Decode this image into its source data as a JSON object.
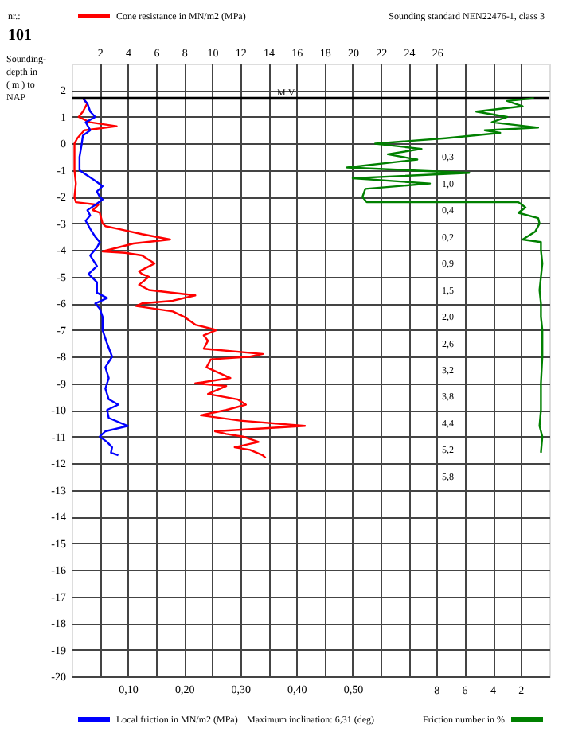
{
  "chart_data": [
    {
      "type": "line",
      "x2label": "Cone resistance in MN/m2 (MPa)",
      "xlabel": "Local friction in MN/m2 (MPa)",
      "ylabel": "Sounding-depth in ( m ) to NAP",
      "annotations": [
        "nr.:",
        "101",
        "Sounding standard NEN22476-1, class 3",
        "Maximum inclination: 6,31 (deg)",
        "0,3",
        "1,0",
        "0,4",
        "0,2",
        "0,9",
        "1,5",
        "2,0",
        "2,6",
        "3,2",
        "3,8",
        "4,4",
        "5,2",
        "5,8"
      ],
      "xlim": [
        0,
        0.85
      ],
      "xticks": [
        {
          "value": 0.1,
          "label": "0,10"
        },
        {
          "value": 0.2,
          "label": "0,20"
        },
        {
          "value": 0.3,
          "label": "0,30"
        },
        {
          "value": 0.4,
          "label": "0,40"
        },
        {
          "value": 0.5,
          "label": "0,50"
        }
      ],
      "x2lim": [
        0,
        34
      ],
      "x2ticks": [
        2,
        4,
        6,
        8,
        10,
        12,
        14,
        16,
        18,
        20,
        22,
        24,
        26,
        {
          "value": 28,
          "label": null
        },
        {
          "value": 30,
          "label": null
        },
        {
          "value": 32,
          "label": null
        }
      ],
      "ylim": [
        -20,
        3
      ],
      "yticks": [
        2,
        1,
        0,
        -1,
        -2,
        -3,
        -4,
        -5,
        -6,
        -7,
        -8,
        -9,
        -10,
        -11,
        -12,
        -13,
        -14,
        -15,
        -16,
        -17,
        -18,
        -19,
        -20
      ],
      "grid": true,
      "marker": "none",
      "line_style": "solid",
      "ref_lines": [
        {
          "axis": "y",
          "value": 1.7,
          "label": "M.V.",
          "color": "#000000"
        }
      ],
      "series": [
        {
          "color": "#ff0000",
          "axis": "x2",
          "x": [
            0.8,
            1.1,
            0.8,
            0.5,
            1.3,
            3.2,
            0.9,
            0.4,
            0.2,
            0.2,
            0.3,
            0.2,
            0.3,
            1.9,
            1.5,
            2,
            2.2,
            2.4,
            3.3,
            5,
            7,
            4.4,
            2.2,
            3.8,
            5,
            5.9,
            4.8,
            5,
            5.5,
            4.8,
            5.5,
            8.8,
            7.2,
            5,
            4.6,
            7.2,
            8,
            8.8,
            10.3,
            9.4,
            9.7,
            9.4,
            13.6,
            12.7,
            9.9,
            9.7,
            9.6,
            11.3,
            8.8,
            11,
            9.7,
            11.8,
            12.4,
            11,
            9.2,
            12,
            16.6,
            10.2,
            11,
            12.2,
            13.3,
            11.6,
            12.7,
            13.6,
            13.8
          ],
          "values": [
            1.7,
            1.5,
            1.2,
            1.0,
            0.8,
            0.65,
            0.5,
            0.2,
            0,
            -1,
            -1.5,
            -2,
            -2.2,
            -2.3,
            -2.5,
            -2.6,
            -3,
            -3.1,
            -3.2,
            -3.4,
            -3.6,
            -3.75,
            -4.05,
            -4.1,
            -4.2,
            -4.5,
            -4.8,
            -4.9,
            -5,
            -5.3,
            -5.5,
            -5.7,
            -5.9,
            -6,
            -6.1,
            -6.3,
            -6.5,
            -6.8,
            -7,
            -7.2,
            -7.4,
            -7.7,
            -7.9,
            -8,
            -8.1,
            -8.3,
            -8.4,
            -8.8,
            -9,
            -9.1,
            -9.4,
            -9.6,
            -9.8,
            -10,
            -10.2,
            -10.4,
            -10.6,
            -10.8,
            -10.9,
            -11,
            -11.2,
            -11.4,
            -11.5,
            -11.7,
            -11.8
          ]
        },
        {
          "color": "#0000ff",
          "x": [
            0.02,
            0.028,
            0.033,
            0.042,
            0.025,
            0.033,
            0.02,
            0.018,
            0.014,
            0.014,
            0.042,
            0.055,
            0.045,
            0.05,
            0.055,
            0.042,
            0.028,
            0.033,
            0.025,
            0.033,
            0.042,
            0.05,
            0.045,
            0.033,
            0.045,
            0.03,
            0.045,
            0.045,
            0.063,
            0.042,
            0.05,
            0.055,
            0.055,
            0.063,
            0.072,
            0.06,
            0.066,
            0.06,
            0.066,
            0.083,
            0.063,
            0.066,
            0.1,
            0.06,
            0.05,
            0.063,
            0.072,
            0.07,
            0.083
          ],
          "values": [
            1.7,
            1.5,
            1.2,
            1.0,
            0.8,
            0.5,
            0.3,
            0,
            -0.5,
            -1,
            -1.4,
            -1.6,
            -1.8,
            -2.0,
            -2.1,
            -2.3,
            -2.5,
            -2.7,
            -2.9,
            -3.2,
            -3.5,
            -3.7,
            -3.9,
            -4.2,
            -4.6,
            -4.9,
            -5.2,
            -5.6,
            -5.8,
            -6.0,
            -6.2,
            -6.5,
            -7.0,
            -7.5,
            -8.0,
            -8.4,
            -8.8,
            -9.2,
            -9.6,
            -9.8,
            -10.0,
            -10.3,
            -10.6,
            -10.8,
            -11.0,
            -11.2,
            -11.4,
            -11.6,
            -11.7
          ]
        }
      ]
    },
    {
      "type": "line",
      "xlabel": "Friction number in %",
      "xlim": [
        34,
        0
      ],
      "xticks": [
        8,
        6,
        4,
        2
      ],
      "ylim": [
        -20,
        3
      ],
      "tick_labels": "x",
      "series": [
        {
          "color": "#008000",
          "x": [
            1.1,
            3.0,
            1.9,
            5.2,
            3.0,
            4.1,
            0.8,
            4.6,
            3.5,
            7.4,
            12.4,
            9.1,
            11.5,
            9.4,
            14.4,
            5.7,
            14,
            8.5,
            13.1,
            13.3,
            13,
            2.2,
            1.7,
            2.2,
            0.8,
            0.7,
            1.0,
            1.9,
            0.6,
            0.6,
            0.5,
            0.6,
            0.7,
            0.6,
            0.6,
            0.5,
            0.5,
            0.6,
            0.6,
            0.7,
            0.5,
            0.6
          ],
          "values": [
            1.7,
            1.6,
            1.4,
            1.2,
            1.0,
            0.8,
            0.6,
            0.5,
            0.4,
            0.2,
            0,
            -0.2,
            -0.4,
            -0.6,
            -0.9,
            -1.1,
            -1.3,
            -1.5,
            -1.7,
            -2,
            -2.2,
            -2.2,
            -2.4,
            -2.6,
            -2.8,
            -3,
            -3.3,
            -3.6,
            -3.7,
            -4,
            -4.5,
            -5,
            -5.5,
            -6,
            -6.5,
            -7,
            -8,
            -9,
            -10,
            -10.6,
            -11,
            -11.6
          ]
        }
      ]
    }
  ]
}
